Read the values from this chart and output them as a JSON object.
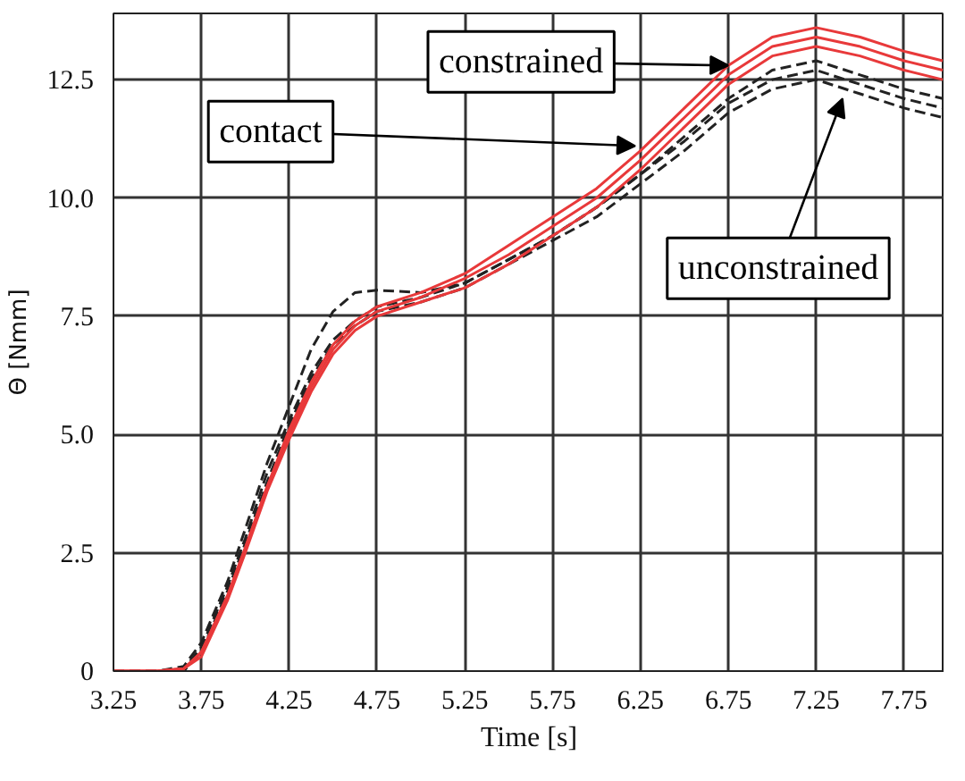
{
  "chart_data": {
    "type": "line",
    "xlabel": "Time [s]",
    "ylabel": "Θ [Nmm]",
    "xlim": [
      3.25,
      7.98
    ],
    "ylim": [
      0,
      13.9
    ],
    "xticks": [
      3.25,
      3.75,
      4.25,
      4.75,
      5.25,
      5.75,
      6.25,
      6.75,
      7.25,
      7.75
    ],
    "yticks": [
      0,
      {
        "value": 2.5,
        "label": "2.5"
      },
      {
        "value": 5,
        "label": "5.0"
      },
      {
        "value": 7.5,
        "label": "7.5"
      },
      {
        "value": 10,
        "label": "10.0"
      },
      {
        "value": 12.5,
        "label": "12.5"
      }
    ],
    "grid": true,
    "x": [
      3.25,
      3.5,
      3.65,
      3.75,
      3.9,
      4.0,
      4.125,
      4.25,
      4.375,
      4.5,
      4.625,
      4.75,
      5.0,
      5.25,
      5.5,
      5.75,
      6.0,
      6.25,
      6.5,
      6.75,
      7.0,
      7.25,
      7.5,
      7.75,
      7.97
    ],
    "series": [
      {
        "color": "#222222",
        "line_style": "dashed",
        "values": [
          0,
          0,
          0.1,
          0.6,
          1.9,
          3.0,
          4.4,
          5.6,
          6.8,
          7.6,
          8.0,
          8.05,
          8.0,
          8.2,
          8.7,
          9.2,
          9.8,
          10.5,
          11.3,
          12.1,
          12.7,
          12.9,
          12.6,
          12.3,
          12.1
        ]
      },
      {
        "color": "#222222",
        "line_style": "dashed",
        "values": [
          0,
          0,
          0.05,
          0.5,
          1.8,
          2.8,
          4.2,
          5.3,
          6.3,
          7.0,
          7.4,
          7.7,
          7.9,
          8.2,
          8.7,
          9.2,
          9.8,
          10.5,
          11.2,
          12.0,
          12.5,
          12.7,
          12.4,
          12.1,
          11.9
        ]
      },
      {
        "color": "#222222",
        "line_style": "dashed",
        "values": [
          0,
          0,
          0,
          0.4,
          1.7,
          2.7,
          4.0,
          5.2,
          6.2,
          6.9,
          7.3,
          7.6,
          7.8,
          8.1,
          8.6,
          9.1,
          9.6,
          10.3,
          11.0,
          11.8,
          12.3,
          12.5,
          12.2,
          11.9,
          11.7
        ]
      },
      {
        "color": "#e8393a",
        "line_style": "solid",
        "values": [
          0,
          0,
          0.05,
          0.4,
          1.6,
          2.6,
          3.9,
          5.0,
          6.0,
          6.8,
          7.3,
          7.6,
          7.9,
          8.3,
          8.8,
          9.4,
          10.0,
          10.8,
          11.7,
          12.6,
          13.2,
          13.4,
          13.2,
          12.9,
          12.7
        ]
      },
      {
        "color": "#e8393a",
        "line_style": "solid",
        "values": [
          0,
          0,
          0.05,
          0.3,
          1.5,
          2.5,
          3.8,
          4.9,
          5.9,
          6.7,
          7.2,
          7.5,
          7.8,
          8.1,
          8.6,
          9.2,
          9.8,
          10.6,
          11.5,
          12.4,
          13.0,
          13.2,
          13.0,
          12.7,
          12.5
        ]
      },
      {
        "color": "#e8393a",
        "line_style": "solid",
        "values": [
          0,
          0,
          0.05,
          0.4,
          1.6,
          2.6,
          3.9,
          5.1,
          6.1,
          6.9,
          7.4,
          7.7,
          8.0,
          8.4,
          9.0,
          9.6,
          10.2,
          11.0,
          11.9,
          12.8,
          13.4,
          13.6,
          13.4,
          13.1,
          12.9
        ]
      }
    ],
    "annotations": [
      {
        "text": "constrained",
        "x": 6.75,
        "y": 12.8
      },
      {
        "text": "contact",
        "x": 6.22,
        "y": 11.1
      },
      {
        "text": "unconstrained",
        "x": 7.4,
        "y": 12.1
      }
    ]
  }
}
